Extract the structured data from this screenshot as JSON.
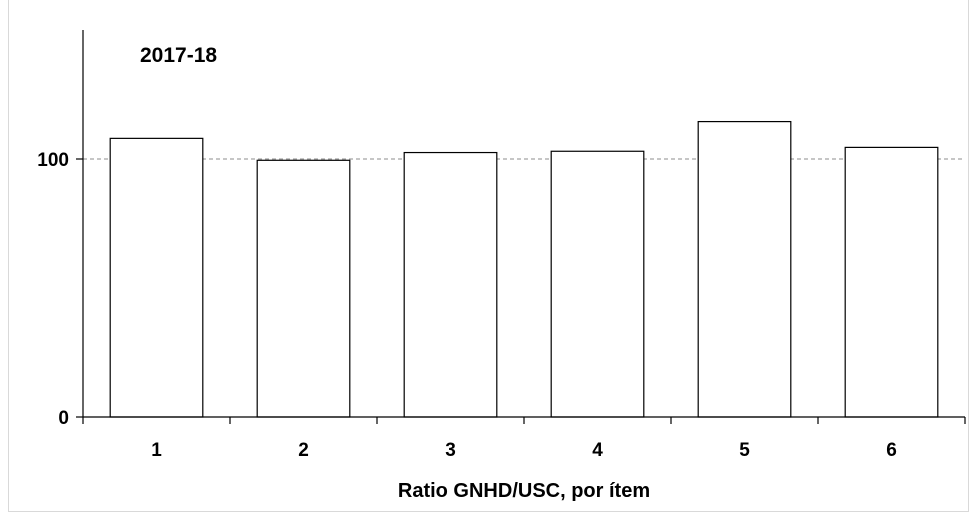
{
  "chart_data": {
    "type": "bar",
    "title": "2017-18",
    "xlabel": "Ratio GNHD/USC, por ítem",
    "ylabel": "",
    "categories": [
      "1",
      "2",
      "3",
      "4",
      "5",
      "6"
    ],
    "values": [
      108,
      99.5,
      102.5,
      103,
      114.5,
      104.5
    ],
    "ylim": [
      0,
      150
    ],
    "yticks": [
      0,
      100
    ],
    "reference_line": {
      "value": 100,
      "style": "dashed"
    },
    "grid": false,
    "legend": "none",
    "colors": {
      "bar_fill": "#ffffff",
      "bar_stroke": "#000000",
      "reference_line": "#8c8c8c"
    }
  }
}
